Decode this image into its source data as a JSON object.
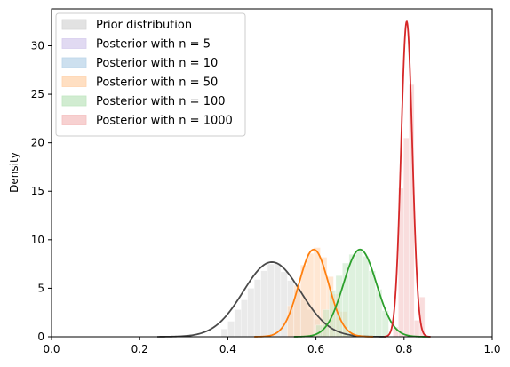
{
  "chart_data": {
    "type": "histogram-density",
    "ylabel": "Density",
    "xlabel": "",
    "xlim": [
      0.0,
      1.0
    ],
    "ylim": [
      0,
      33.8
    ],
    "xticks": [
      "0.0",
      "0.2",
      "0.4",
      "0.6",
      "0.8",
      "1.0"
    ],
    "yticks": [
      "0",
      "5",
      "10",
      "15",
      "20",
      "25",
      "30"
    ],
    "grid": false,
    "legend_position": "top-left",
    "legend": [
      {
        "label": "Prior distribution",
        "color": "#d8d8d8"
      },
      {
        "label": "Posterior with n = 5",
        "color": "#d7cdee"
      },
      {
        "label": "Posterior with n = 10",
        "color": "#bcd6ea"
      },
      {
        "label": "Posterior with n = 50",
        "color": "#ffd4ae"
      },
      {
        "label": "Posterior with n = 100",
        "color": "#c2e6c2"
      },
      {
        "label": "Posterior with n = 1000",
        "color": "#f4c1c1"
      }
    ],
    "series": [
      {
        "name": "Prior distribution",
        "hist_color": "#d8d8d8",
        "line_color": "#4a4a4a",
        "mean": 0.5,
        "peak": 7.7,
        "range": [
          0.24,
          0.76
        ],
        "bins": [
          [
            0.385,
            0.4
          ],
          [
            0.4,
            0.415
          ],
          [
            0.415,
            0.43
          ],
          [
            0.43,
            0.445
          ],
          [
            0.445,
            0.46
          ],
          [
            0.46,
            0.475
          ],
          [
            0.475,
            0.49
          ],
          [
            0.49,
            0.505
          ],
          [
            0.505,
            0.52
          ],
          [
            0.52,
            0.535
          ],
          [
            0.535,
            0.55
          ],
          [
            0.55,
            0.565
          ],
          [
            0.565,
            0.58
          ],
          [
            0.58,
            0.595
          ],
          [
            0.595,
            0.61
          ],
          [
            0.61,
            0.625
          ]
        ],
        "bin_heights": [
          0.8,
          1.6,
          2.8,
          3.8,
          5.0,
          5.9,
          6.8,
          7.5,
          7.6,
          6.7,
          5.8,
          4.9,
          3.8,
          2.8,
          1.8,
          1.0
        ]
      },
      {
        "name": "Posterior with n = 50",
        "hist_color": "#ffd4ae",
        "line_color": "#ff7f0e",
        "mean": 0.595,
        "peak": 9.0,
        "range": [
          0.46,
          0.73
        ],
        "bins": [
          [
            0.535,
            0.55
          ],
          [
            0.55,
            0.565
          ],
          [
            0.565,
            0.58
          ],
          [
            0.58,
            0.595
          ],
          [
            0.595,
            0.61
          ],
          [
            0.61,
            0.625
          ],
          [
            0.625,
            0.64
          ],
          [
            0.64,
            0.655
          ],
          [
            0.655,
            0.67
          ]
        ],
        "bin_heights": [
          3.2,
          5.3,
          7.4,
          8.6,
          9.2,
          8.2,
          6.2,
          4.4,
          2.6
        ]
      },
      {
        "name": "Posterior with n = 100",
        "hist_color": "#c2e6c2",
        "line_color": "#2ca02c",
        "mean": 0.7,
        "peak": 9.0,
        "range": [
          0.55,
          0.86
        ],
        "bins": [
          [
            0.6,
            0.615
          ],
          [
            0.615,
            0.63
          ],
          [
            0.63,
            0.645
          ],
          [
            0.645,
            0.66
          ],
          [
            0.66,
            0.675
          ],
          [
            0.675,
            0.69
          ],
          [
            0.69,
            0.705
          ],
          [
            0.705,
            0.72
          ],
          [
            0.72,
            0.735
          ],
          [
            0.735,
            0.75
          ],
          [
            0.75,
            0.765
          ]
        ],
        "bin_heights": [
          1.2,
          2.8,
          4.8,
          6.3,
          7.6,
          8.5,
          8.8,
          8.3,
          6.8,
          4.9,
          2.7
        ]
      },
      {
        "name": "Posterior with n = 1000",
        "hist_color": "#f4c1c1",
        "line_color": "#d62728",
        "mean": 0.806,
        "peak": 32.5,
        "range": [
          0.755,
          0.86
        ],
        "bins": [
          [
            0.775,
            0.787
          ],
          [
            0.787,
            0.799
          ],
          [
            0.799,
            0.811
          ],
          [
            0.811,
            0.823
          ],
          [
            0.823,
            0.835
          ],
          [
            0.835,
            0.847
          ]
        ],
        "bin_heights": [
          1.0,
          15.3,
          20.5,
          26.0,
          1.7,
          4.1
        ]
      }
    ]
  }
}
